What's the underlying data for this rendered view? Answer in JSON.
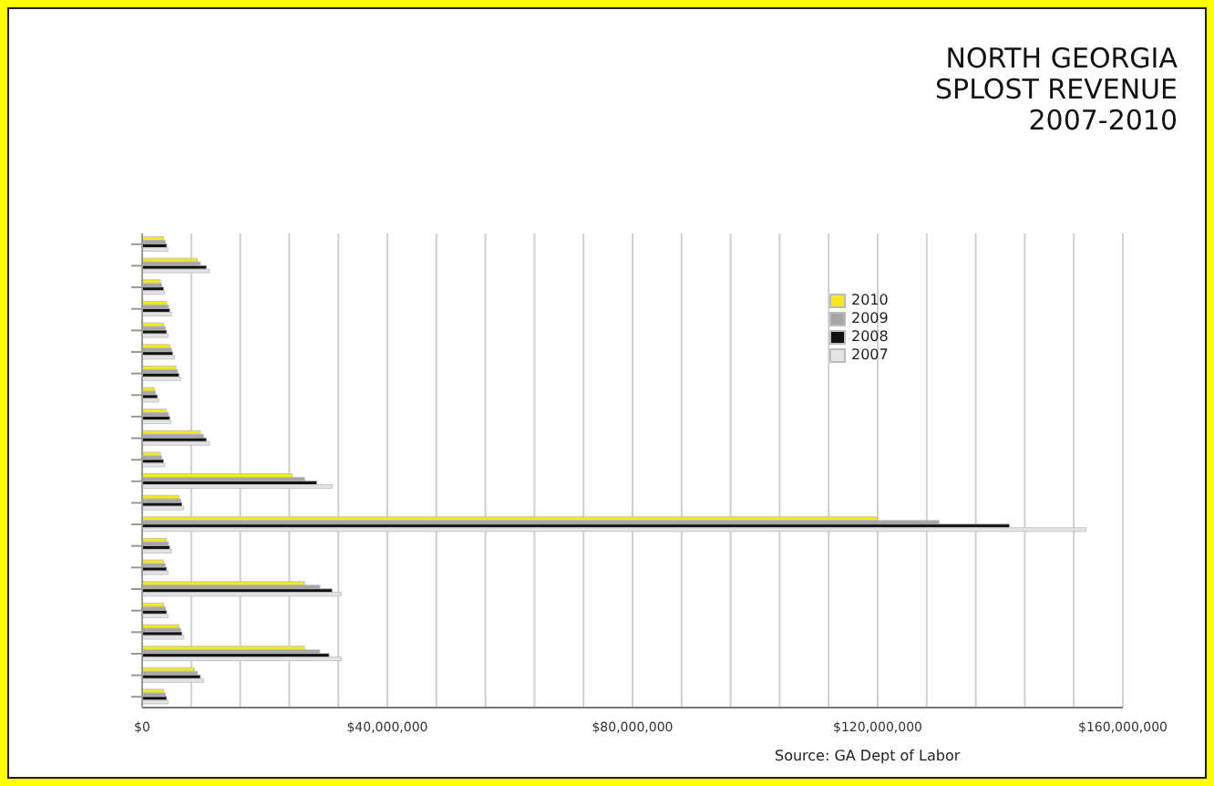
{
  "chart_data": {
    "type": "bar",
    "orientation": "horizontal",
    "title": "NORTH GEORGIA\nSPLOST REVENUE\n2007-2010",
    "categories": [
      null,
      null,
      null,
      null,
      null,
      null,
      null,
      null,
      null,
      null,
      null,
      null,
      null,
      null,
      null,
      null,
      null,
      null,
      null,
      null,
      null,
      null
    ],
    "series": [
      {
        "name": "2010",
        "color": "#f2ea1a",
        "values": [
          3500000,
          9000000,
          3000000,
          4000000,
          3500000,
          4500000,
          5500000,
          2000000,
          4000000,
          9500000,
          3000000,
          24500000,
          6000000,
          120000000,
          4000000,
          3500000,
          26500000,
          3500000,
          6000000,
          26500000,
          8500000,
          3500000
        ]
      },
      {
        "name": "2009",
        "color": "#a6a6a6",
        "values": [
          3800000,
          9500000,
          3200000,
          4300000,
          3800000,
          4800000,
          5800000,
          2200000,
          4300000,
          10000000,
          3200000,
          26500000,
          6300000,
          130000000,
          4300000,
          3800000,
          29000000,
          3800000,
          6300000,
          29000000,
          9000000,
          3800000
        ]
      },
      {
        "name": "2008",
        "color": "#111111",
        "values": [
          4000000,
          10500000,
          3500000,
          4500000,
          4000000,
          5000000,
          6000000,
          2500000,
          4500000,
          10500000,
          3500000,
          28500000,
          6500000,
          141500000,
          4500000,
          4000000,
          31000000,
          4000000,
          6500000,
          30500000,
          9500000,
          4000000
        ]
      },
      {
        "name": "2007",
        "color": "#e4e4e4",
        "values": [
          4200000,
          11000000,
          3700000,
          4800000,
          4200000,
          5300000,
          6300000,
          2700000,
          4700000,
          11000000,
          3700000,
          31000000,
          6800000,
          154000000,
          4800000,
          4200000,
          32500000,
          4200000,
          6800000,
          32500000,
          10000000,
          4200000
        ]
      }
    ],
    "xlim": [
      0,
      160000000
    ],
    "xticks": [
      {
        "value": 0,
        "label": "$0"
      },
      {
        "value": 8000000,
        "label": null
      },
      {
        "value": 16000000,
        "label": null
      },
      {
        "value": 24000000,
        "label": null
      },
      {
        "value": 32000000,
        "label": null
      },
      {
        "value": 40000000,
        "label": "$40,000,000"
      },
      {
        "value": 48000000,
        "label": null
      },
      {
        "value": 56000000,
        "label": null
      },
      {
        "value": 64000000,
        "label": null
      },
      {
        "value": 72000000,
        "label": null
      },
      {
        "value": 80000000,
        "label": "$80,000,000"
      },
      {
        "value": 88000000,
        "label": null
      },
      {
        "value": 96000000,
        "label": null
      },
      {
        "value": 104000000,
        "label": null
      },
      {
        "value": 112000000,
        "label": null
      },
      {
        "value": 120000000,
        "label": "$120,000,000"
      },
      {
        "value": 128000000,
        "label": null
      },
      {
        "value": 136000000,
        "label": null
      },
      {
        "value": 144000000,
        "label": null
      },
      {
        "value": 152000000,
        "label": null
      },
      {
        "value": 160000000,
        "label": "$160,000,000"
      }
    ],
    "grid": "x",
    "legend": "top right",
    "annotations": [
      "Source: GA Dept of Labor"
    ]
  }
}
